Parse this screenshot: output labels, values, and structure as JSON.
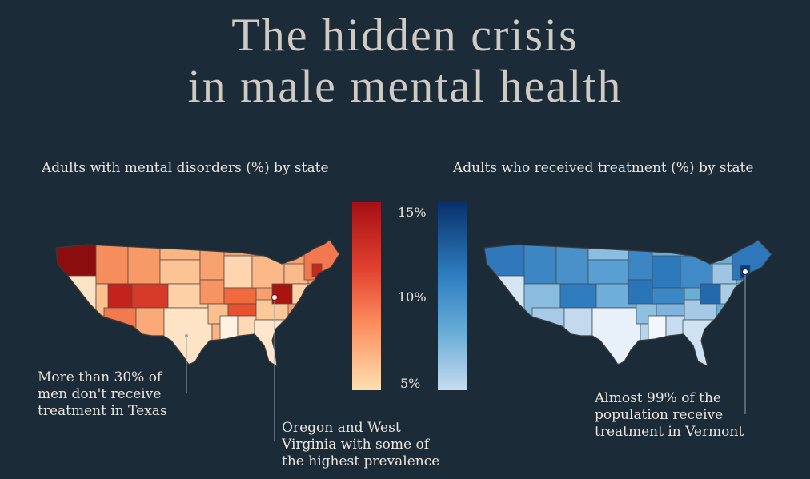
{
  "title": {
    "line1": "The hidden crisis",
    "line2": "in male mental health"
  },
  "left_map": {
    "subtitle": "Adults with mental disorders (%) by state"
  },
  "right_map": {
    "subtitle": "Adults who received treatment (%) by state"
  },
  "legend": {
    "ticks": [
      "15%",
      "10%",
      "5%"
    ],
    "prevalence_colors": [
      "#a50f15",
      "#ef6548",
      "#fc9e6e",
      "#fee0b6"
    ],
    "treatment_colors": [
      "#08306b",
      "#2171b5",
      "#6baed6",
      "#c6dbef"
    ]
  },
  "annotations": {
    "texas": "More than 30% of\nmen don't receive\ntreatment in Texas",
    "oregon_wv": "Oregon and West\nVirginia with some of\nthe highest prevalence",
    "vermont": "Almost 99% of the\npopulation receive\ntreatment in Vermont"
  },
  "chart_data": [
    {
      "type": "choropleth",
      "title": "Adults with mental disorders (%) by state",
      "scale": [
        5,
        15
      ],
      "highlighted": [
        "Oregon",
        "West Virginia"
      ]
    },
    {
      "type": "choropleth",
      "title": "Adults who received treatment (%) by state",
      "highlighted": [
        "Vermont"
      ]
    }
  ]
}
